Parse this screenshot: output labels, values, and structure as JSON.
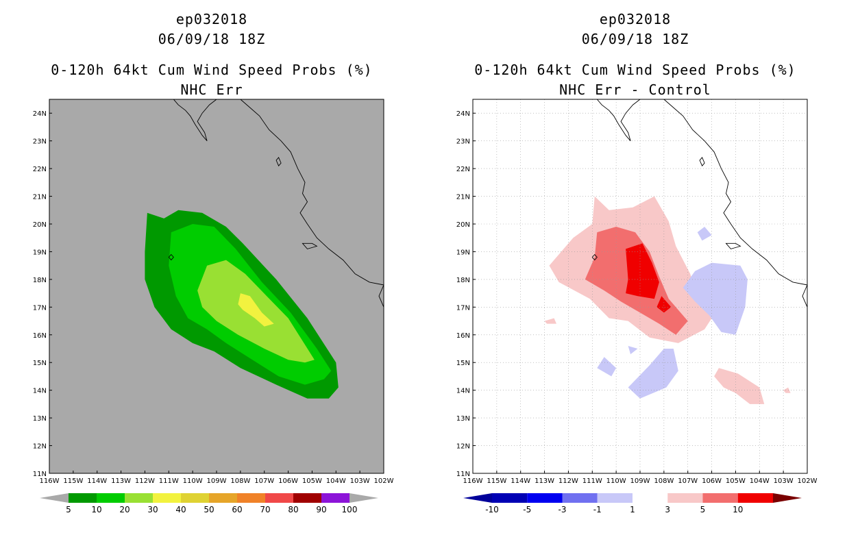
{
  "panels": [
    {
      "storm": "ep032018",
      "datetime": "06/09/18 18Z",
      "product": "0-120h 64kt Cum Wind Speed Probs (%)",
      "subtitle": "NHC Err",
      "background": "#a9a9a9",
      "grid": false
    },
    {
      "storm": "ep032018",
      "datetime": "06/09/18 18Z",
      "product": "0-120h 64kt Cum Wind Speed Probs (%)",
      "subtitle": "NHC Err - Control",
      "background": "#ffffff",
      "grid": true
    }
  ],
  "chart_data": [
    {
      "type": "heatmap",
      "title": "0-120h 64kt Cum Wind Speed Probs (%)",
      "subtitle": "NHC Err",
      "x_ticks": [
        "116W",
        "115W",
        "114W",
        "113W",
        "112W",
        "111W",
        "110W",
        "109W",
        "108W",
        "107W",
        "106W",
        "105W",
        "104W",
        "103W",
        "102W"
      ],
      "y_ticks": [
        "11N",
        "12N",
        "13N",
        "14N",
        "15N",
        "16N",
        "17N",
        "18N",
        "19N",
        "20N",
        "21N",
        "22N",
        "23N",
        "24N"
      ],
      "xlim": [
        -116,
        -102
      ],
      "ylim": [
        11,
        24.5
      ],
      "contour_levels": [
        5,
        10,
        20,
        30
      ],
      "contours": [
        {
          "level": 5,
          "color": "#009900",
          "points": [
            [
              -111.9,
              20.4
            ],
            [
              -111.2,
              20.2
            ],
            [
              -110.6,
              20.5
            ],
            [
              -109.6,
              20.4
            ],
            [
              -108.6,
              19.9
            ],
            [
              -107.9,
              19.3
            ],
            [
              -106.5,
              18.0
            ],
            [
              -105.2,
              16.6
            ],
            [
              -104.0,
              15.0
            ],
            [
              -103.9,
              14.1
            ],
            [
              -104.3,
              13.7
            ],
            [
              -105.2,
              13.7
            ],
            [
              -106.5,
              14.2
            ],
            [
              -108.0,
              14.8
            ],
            [
              -109.1,
              15.4
            ],
            [
              -110.0,
              15.7
            ],
            [
              -110.9,
              16.2
            ],
            [
              -111.6,
              17.0
            ],
            [
              -112.0,
              18.0
            ],
            [
              -112.0,
              19.0
            ]
          ]
        },
        {
          "level": 10,
          "color": "#00cc00",
          "points": [
            [
              -110.9,
              19.7
            ],
            [
              -110.0,
              20.0
            ],
            [
              -109.1,
              19.9
            ],
            [
              -108.2,
              19.1
            ],
            [
              -107.1,
              17.9
            ],
            [
              -105.9,
              16.8
            ],
            [
              -104.8,
              15.5
            ],
            [
              -104.2,
              14.7
            ],
            [
              -104.5,
              14.4
            ],
            [
              -105.3,
              14.2
            ],
            [
              -106.4,
              14.5
            ],
            [
              -107.5,
              15.1
            ],
            [
              -108.6,
              15.7
            ],
            [
              -109.4,
              16.2
            ],
            [
              -110.2,
              16.6
            ],
            [
              -110.7,
              17.4
            ],
            [
              -111.0,
              18.5
            ]
          ]
        },
        {
          "level": 20,
          "color": "#99e033",
          "points": [
            [
              -109.4,
              18.5
            ],
            [
              -108.6,
              18.7
            ],
            [
              -107.8,
              18.2
            ],
            [
              -106.9,
              17.4
            ],
            [
              -106.0,
              16.6
            ],
            [
              -104.9,
              15.1
            ],
            [
              -105.3,
              15.0
            ],
            [
              -106.0,
              15.1
            ],
            [
              -107.0,
              15.5
            ],
            [
              -108.1,
              16.0
            ],
            [
              -109.0,
              16.5
            ],
            [
              -109.6,
              17.0
            ],
            [
              -109.8,
              17.6
            ]
          ]
        },
        {
          "level": 30,
          "color": "#f2f23f",
          "points": [
            [
              -108.0,
              17.5
            ],
            [
              -107.6,
              17.4
            ],
            [
              -107.1,
              16.8
            ],
            [
              -106.6,
              16.4
            ],
            [
              -107.0,
              16.3
            ],
            [
              -107.4,
              16.6
            ],
            [
              -107.9,
              16.9
            ],
            [
              -108.1,
              17.1
            ]
          ]
        }
      ],
      "colorbar": {
        "labels": [
          "5",
          "10",
          "20",
          "30",
          "40",
          "50",
          "60",
          "70",
          "80",
          "90",
          "100"
        ],
        "colors": [
          "#009900",
          "#00cc00",
          "#99e033",
          "#f2f23f",
          "#dfd233",
          "#e6a529",
          "#f08228",
          "#f04848",
          "#a00000",
          "#8c14d8"
        ],
        "ends": "#a9a9a9"
      }
    },
    {
      "type": "heatmap",
      "title": "0-120h 64kt Cum Wind Speed Probs (%)",
      "subtitle": "NHC Err - Control",
      "x_ticks": [
        "116W",
        "115W",
        "114W",
        "113W",
        "112W",
        "111W",
        "110W",
        "109W",
        "108W",
        "107W",
        "106W",
        "105W",
        "104W",
        "103W",
        "102W"
      ],
      "y_ticks": [
        "11N",
        "12N",
        "13N",
        "14N",
        "15N",
        "16N",
        "17N",
        "18N",
        "19N",
        "20N",
        "21N",
        "22N",
        "23N",
        "24N"
      ],
      "xlim": [
        -116,
        -102
      ],
      "ylim": [
        11,
        24.5
      ],
      "contour_levels": [
        -3,
        -1,
        1,
        3,
        5
      ],
      "contours": [
        {
          "level": 1,
          "color": "#f8c8c8",
          "points": [
            [
              -110.9,
              21.0
            ],
            [
              -110.3,
              20.5
            ],
            [
              -109.3,
              20.6
            ],
            [
              -108.4,
              21.0
            ],
            [
              -107.8,
              20.1
            ],
            [
              -107.5,
              19.2
            ],
            [
              -106.9,
              18.2
            ],
            [
              -106.6,
              17.3
            ],
            [
              -106.0,
              16.6
            ],
            [
              -106.3,
              16.2
            ],
            [
              -107.4,
              15.7
            ],
            [
              -108.6,
              15.9
            ],
            [
              -109.5,
              16.5
            ],
            [
              -110.3,
              16.6
            ],
            [
              -111.1,
              17.3
            ],
            [
              -112.4,
              17.9
            ],
            [
              -112.8,
              18.5
            ],
            [
              -111.8,
              19.5
            ],
            [
              -111.0,
              20.0
            ]
          ]
        },
        {
          "level": 1,
          "color": "#f8c8c8",
          "points": [
            [
              -105.7,
              14.8
            ],
            [
              -104.9,
              14.6
            ],
            [
              -104.0,
              14.1
            ],
            [
              -103.8,
              13.5
            ],
            [
              -104.4,
              13.5
            ],
            [
              -105.0,
              13.9
            ],
            [
              -105.5,
              14.1
            ],
            [
              -105.9,
              14.5
            ]
          ]
        },
        {
          "level": 1,
          "color": "#f8c8c8",
          "points": [
            [
              -113.0,
              16.5
            ],
            [
              -112.6,
              16.6
            ],
            [
              -112.5,
              16.4
            ],
            [
              -112.9,
              16.4
            ]
          ]
        },
        {
          "level": 1,
          "color": "#f8c8c8",
          "points": [
            [
              -103.0,
              14.0
            ],
            [
              -102.8,
              14.1
            ],
            [
              -102.7,
              13.9
            ],
            [
              -102.9,
              13.9
            ]
          ]
        },
        {
          "level": 3,
          "color": "#f26e6e",
          "points": [
            [
              -110.8,
              19.7
            ],
            [
              -110.0,
              19.9
            ],
            [
              -109.2,
              19.7
            ],
            [
              -108.6,
              19.0
            ],
            [
              -108.2,
              18.1
            ],
            [
              -107.8,
              17.3
            ],
            [
              -107.0,
              16.5
            ],
            [
              -107.5,
              16.0
            ],
            [
              -108.2,
              16.4
            ],
            [
              -109.0,
              16.8
            ],
            [
              -109.8,
              17.2
            ],
            [
              -110.5,
              17.6
            ],
            [
              -111.3,
              18.0
            ],
            [
              -110.9,
              18.8
            ]
          ]
        },
        {
          "level": 5,
          "color": "#f00000",
          "points": [
            [
              -109.6,
              19.1
            ],
            [
              -108.9,
              19.3
            ],
            [
              -108.5,
              18.6
            ],
            [
              -108.2,
              17.9
            ],
            [
              -108.4,
              17.3
            ],
            [
              -109.1,
              17.4
            ],
            [
              -109.6,
              17.5
            ],
            [
              -109.5,
              18.0
            ]
          ]
        },
        {
          "level": 5,
          "color": "#f00000",
          "points": [
            [
              -108.1,
              17.4
            ],
            [
              -107.7,
              17.0
            ],
            [
              -108.0,
              16.8
            ],
            [
              -108.3,
              17.0
            ]
          ]
        },
        {
          "level": -1,
          "color": "#c8c8f8",
          "points": [
            [
              -107.2,
              17.7
            ],
            [
              -106.7,
              18.3
            ],
            [
              -106.0,
              18.6
            ],
            [
              -104.8,
              18.5
            ],
            [
              -104.5,
              18.0
            ],
            [
              -104.6,
              17.0
            ],
            [
              -105.0,
              16.0
            ],
            [
              -105.6,
              16.1
            ],
            [
              -106.1,
              16.7
            ],
            [
              -106.7,
              17.2
            ]
          ]
        },
        {
          "level": -1,
          "color": "#c8c8f8",
          "points": [
            [
              -108.0,
              15.5
            ],
            [
              -107.6,
              15.5
            ],
            [
              -107.4,
              14.7
            ],
            [
              -107.9,
              14.1
            ],
            [
              -109.0,
              13.7
            ],
            [
              -109.5,
              14.1
            ],
            [
              -108.6,
              14.9
            ]
          ]
        },
        {
          "level": -1,
          "color": "#c8c8f8",
          "points": [
            [
              -110.5,
              15.2
            ],
            [
              -110.0,
              14.8
            ],
            [
              -110.2,
              14.5
            ],
            [
              -110.8,
              14.8
            ]
          ]
        },
        {
          "level": -1,
          "color": "#c8c8f8",
          "points": [
            [
              -106.3,
              19.9
            ],
            [
              -106.0,
              19.6
            ],
            [
              -106.4,
              19.4
            ],
            [
              -106.6,
              19.7
            ]
          ]
        },
        {
          "level": -1,
          "color": "#c8c8f8",
          "points": [
            [
              -109.5,
              15.6
            ],
            [
              -109.1,
              15.5
            ],
            [
              -109.4,
              15.3
            ]
          ]
        }
      ],
      "colorbar": {
        "labels": [
          "-10",
          "-5",
          "-3",
          "-1",
          "1",
          "3",
          "5",
          "10"
        ],
        "colors": [
          "#0000b4",
          "#0000f0",
          "#7070f0",
          "#c8c8f8",
          "#ffffff",
          "#f8c8c8",
          "#f26e6e",
          "#f00000"
        ],
        "ends": [
          "#00009a",
          "#7a0000"
        ]
      }
    }
  ]
}
